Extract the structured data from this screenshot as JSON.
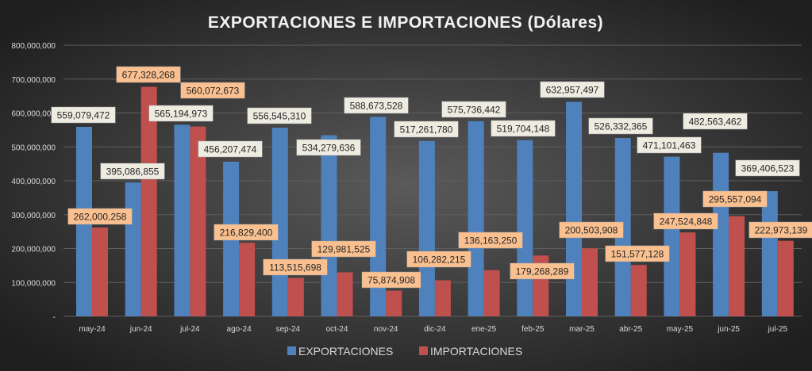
{
  "chart_data": {
    "type": "bar",
    "title": "EXPORTACIONES E IMPORTACIONES (Dólares)",
    "xlabel": "",
    "ylabel": "",
    "ylim": [
      0,
      800000000
    ],
    "yticks": [
      0,
      100000000,
      200000000,
      300000000,
      400000000,
      500000000,
      600000000,
      700000000,
      800000000
    ],
    "ytick_labels": [
      "-",
      "100,000,000",
      "200,000,000",
      "300,000,000",
      "400,000,000",
      "500,000,000",
      "600,000,000",
      "700,000,000",
      "800,000,000"
    ],
    "grid": true,
    "legend_position": "bottom",
    "categories": [
      "may-24",
      "jun-24",
      "jul-24",
      "ago-24",
      "sep-24",
      "oct-24",
      "nov-24",
      "dic-24",
      "ene-25",
      "feb-25",
      "mar-25",
      "abr-25",
      "may-25",
      "jun-25",
      "jul-25"
    ],
    "series": [
      {
        "name": "EXPORTACIONES",
        "color": "#4F81BD",
        "label_bg": "#EEECE1",
        "values": [
          559079472,
          395086855,
          565194973,
          456207474,
          556545310,
          534279636,
          588673528,
          517261780,
          575736442,
          519704148,
          632957497,
          526332365,
          471101463,
          482563462,
          369406523
        ],
        "labels": [
          "559,079,472",
          "395,086,855",
          "565,194,973",
          "456,207,474",
          "556,545,310",
          "534,279,636",
          "588,673,528",
          "517,261,780",
          "575,736,442",
          "519,704,148",
          "632,957,497",
          "526,332,365",
          "471,101,463",
          "482,563,462",
          "369,406,523"
        ]
      },
      {
        "name": "IMPORTACIONES",
        "color": "#C0504D",
        "label_bg": "#FAC090",
        "values": [
          262000258,
          677328268,
          560072673,
          216829400,
          113515698,
          129981525,
          75874908,
          106282215,
          136163250,
          179268289,
          200503908,
          151577128,
          247524848,
          295557094,
          222973139
        ],
        "labels": [
          "262,000,258",
          "677,328,268",
          "560,072,673",
          "216,829,400",
          "113,515,698",
          "129,981,525",
          "75,874,908",
          "106,282,215",
          "136,163,250",
          "179,268,289",
          "200,503,908",
          "151,577,128",
          "247,524,848",
          "295,557,094",
          "222,973,139"
        ]
      }
    ]
  }
}
